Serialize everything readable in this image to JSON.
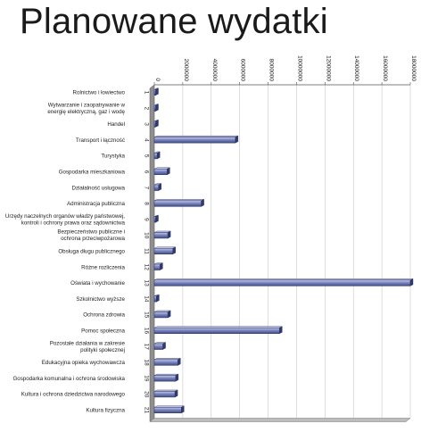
{
  "title": "Planowane wydatki",
  "chart_data": {
    "type": "bar",
    "orientation": "horizontal",
    "title": "Planowane wydatki",
    "xlabel": "",
    "ylabel": "",
    "xlim": [
      0,
      18000000
    ],
    "x_ticks": [
      "0",
      "2000000",
      "4000000",
      "6000000",
      "8000000",
      "10000000",
      "12000000",
      "14000000",
      "16000000",
      "18000000"
    ],
    "grid": true,
    "categories": [
      {
        "index": "1",
        "label": "Rolnictwo i łowiectwo"
      },
      {
        "index": "2",
        "label": "Wytwarzanie i zaopatrywanie w energię elektryczną, gaz i wodę"
      },
      {
        "index": "3",
        "label": "Handel"
      },
      {
        "index": "4",
        "label": "Transport i łączność"
      },
      {
        "index": "5",
        "label": "Turystyka"
      },
      {
        "index": "6",
        "label": "Gospodarka mieszkaniowa"
      },
      {
        "index": "7",
        "label": "Działalność usługowa"
      },
      {
        "index": "8",
        "label": "Administracja publiczna"
      },
      {
        "index": "9",
        "label": "Urzędy naczelnych organów władzy państwowej, kontroli i ochrony prawa oraz sądownictwa"
      },
      {
        "index": "10",
        "label": "Bezpieczeństwo publiczne i ochrona przeciwpożarowa"
      },
      {
        "index": "11",
        "label": "Obsługa długu publicznego"
      },
      {
        "index": "12",
        "label": "Różne rozliczenia"
      },
      {
        "index": "13",
        "label": "Oświata i wychowanie"
      },
      {
        "index": "14",
        "label": "Szkolnictwo wyższe"
      },
      {
        "index": "15",
        "label": "Ochrona zdrowia"
      },
      {
        "index": "16",
        "label": "Pomoc społeczna"
      },
      {
        "index": "17",
        "label": "Pozostałe działania w zakresie polityki społecznej"
      },
      {
        "index": "18",
        "label": "Edukacyjna opieka wychowawcza"
      },
      {
        "index": "19",
        "label": "Gospodarka komunalna i ochrona środowiska"
      },
      {
        "index": "20",
        "label": "Kultura i ochrona dziedzictwa narodowego"
      },
      {
        "index": "21",
        "label": "Kultura fizyczna"
      }
    ],
    "values": [
      20000,
      10000,
      5000,
      5700000,
      200000,
      900000,
      300000,
      3300000,
      50000,
      950000,
      1300000,
      400000,
      18000000,
      150000,
      950000,
      8800000,
      600000,
      1650000,
      1500000,
      1450000,
      1900000
    ],
    "bar_color": "#6f7ab0",
    "bar_edge_color": "#2d3566",
    "axis_wall_color": "#8f8f8f"
  }
}
